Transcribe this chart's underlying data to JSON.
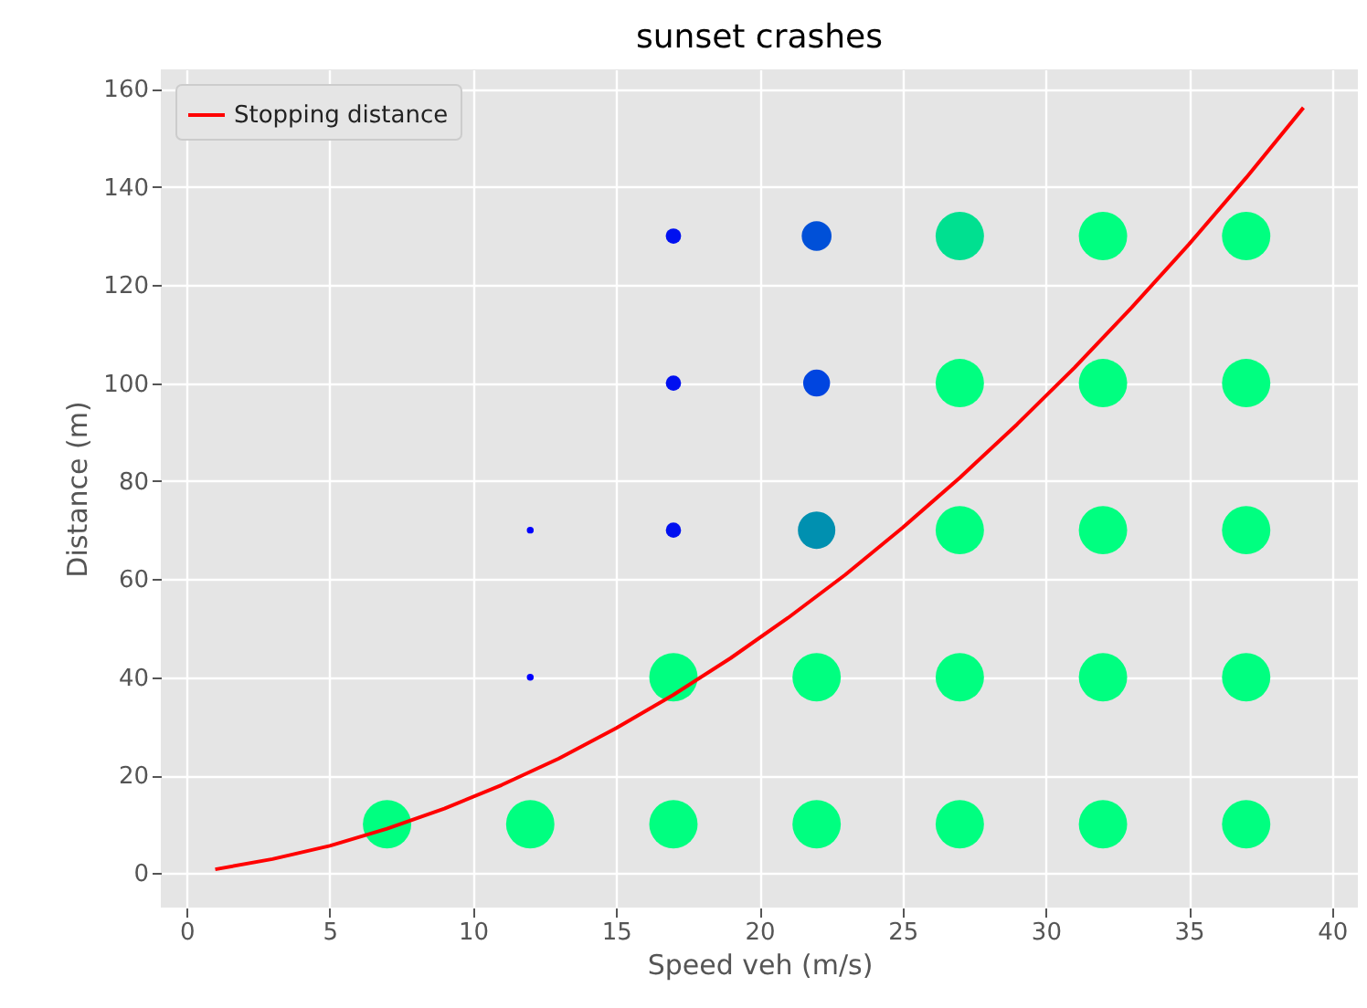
{
  "chart_data": {
    "type": "bubble",
    "title": "sunset crashes",
    "xlabel": "Speed veh (m/s)",
    "ylabel": "Distance (m)",
    "xlim": [
      -0.9,
      40.9
    ],
    "ylim": [
      -7,
      164
    ],
    "xticks": [
      0,
      5,
      10,
      15,
      20,
      25,
      30,
      35,
      40
    ],
    "yticks": [
      0,
      20,
      40,
      60,
      80,
      100,
      120,
      140,
      160
    ],
    "grid": true,
    "legend": "top left",
    "series": [
      {
        "x": [
          7,
          12,
          17,
          22,
          27,
          32,
          37,
          12,
          17,
          22,
          27,
          32,
          37,
          12,
          17,
          22,
          27,
          32,
          37,
          17,
          22,
          27,
          32,
          37,
          17,
          22,
          27,
          32,
          37
        ],
        "values": [
          10,
          10,
          10,
          10,
          10,
          10,
          10,
          40,
          40,
          40,
          40,
          40,
          40,
          70,
          70,
          70,
          70,
          70,
          70,
          100,
          100,
          100,
          100,
          100,
          130,
          130,
          130,
          130,
          130
        ],
        "sizes": [
          1,
          1,
          1,
          1,
          1,
          1,
          1,
          0.02,
          1,
          1,
          1,
          1,
          1,
          0.02,
          0.1,
          0.6,
          1,
          1,
          1,
          0.1,
          0.31,
          1,
          1,
          1,
          0.1,
          0.38,
          1,
          1,
          1
        ],
        "colors": [
          "#00ff80",
          "#00ff80",
          "#00ff80",
          "#00ff80",
          "#00ff80",
          "#00ff80",
          "#00ff80",
          "#0000ff",
          "#00ff80",
          "#00ff80",
          "#00ff80",
          "#00ff80",
          "#00ff80",
          "#0000ff",
          "#0010f0",
          "#0090b0",
          "#00ff80",
          "#00ff80",
          "#00ff80",
          "#0010f0",
          "#0045e0",
          "#00ff80",
          "#00ff80",
          "#00ff80",
          "#0010f0",
          "#0050d8",
          "#00e090",
          "#00ff80",
          "#00ff80"
        ]
      },
      {
        "type": "line",
        "name": "Stopping distance",
        "color": "#ff0000",
        "x": [
          1,
          3,
          5,
          7,
          9,
          11,
          13,
          15,
          17,
          19,
          21,
          23,
          25,
          27,
          29,
          31,
          33,
          35,
          37,
          39
        ],
        "values": [
          0.8,
          2.9,
          5.6,
          9.1,
          13.2,
          18.0,
          23.4,
          29.6,
          36.4,
          43.9,
          52.1,
          60.9,
          70.5,
          80.7,
          91.6,
          103.1,
          115.4,
          128.3,
          141.9,
          156.2
        ]
      }
    ]
  }
}
